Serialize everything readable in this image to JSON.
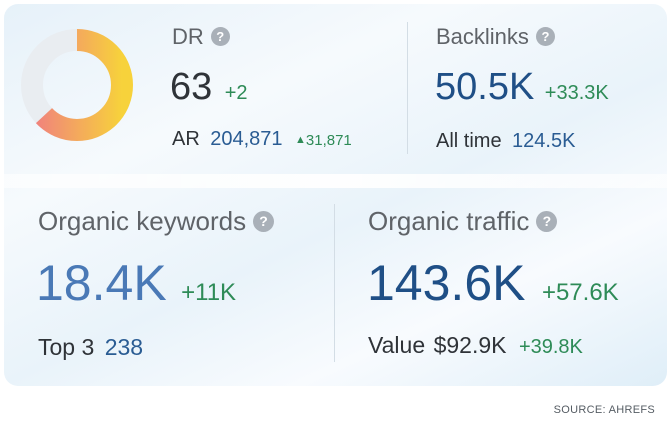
{
  "dr": {
    "label": "DR",
    "value": "63",
    "change": "+2",
    "ar_label": "AR",
    "ar_value": "204,871",
    "ar_change_icon": "triangle-up-icon",
    "ar_change": "31,871",
    "donut_fraction": 0.63
  },
  "backlinks": {
    "label": "Backlinks",
    "value": "50.5K",
    "change": "+33.3K",
    "sub_label": "All time",
    "sub_value": "124.5K"
  },
  "organic_keywords": {
    "label": "Organic keywords",
    "value": "18.4K",
    "change": "+11K",
    "sub_label": "Top 3",
    "sub_value": "238"
  },
  "organic_traffic": {
    "label": "Organic traffic",
    "value": "143.6K",
    "change": "+57.6K",
    "sub_label": "Value",
    "sub_value": "$92.9K",
    "sub_change": "+39.8K"
  },
  "help_icon_glyph": "?",
  "source": "SOURCE: AHREFS",
  "colors": {
    "donut_start": "#f07f7f",
    "donut_end": "#f7d23b",
    "donut_track": "#e9edf1",
    "accent_blue": "#1f4f86",
    "positive": "#2e8b57"
  }
}
